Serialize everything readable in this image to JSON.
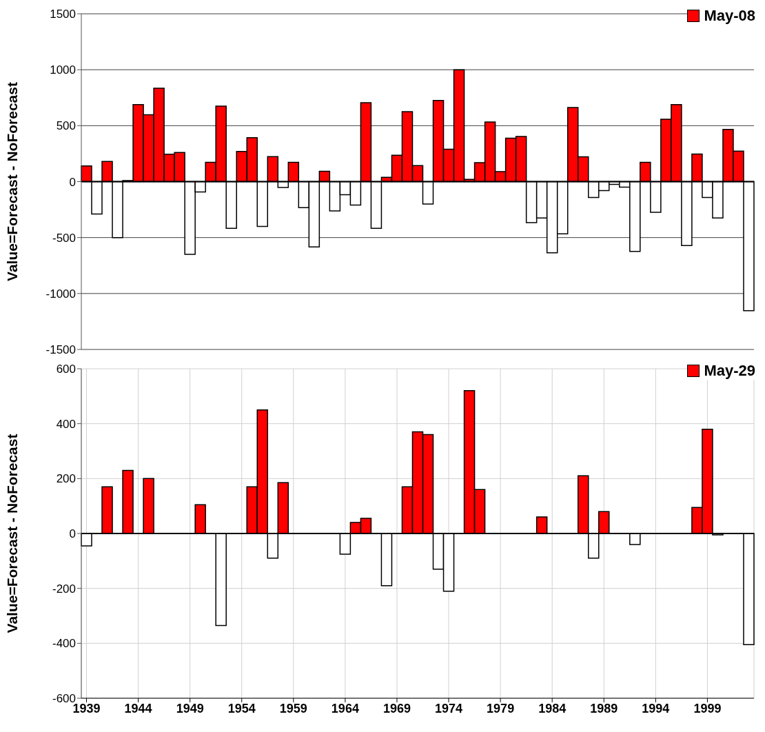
{
  "chart_data": [
    {
      "type": "bar",
      "ylabel": "Value=Forecast - NoForecast",
      "categories": [
        "1939",
        null,
        null,
        null,
        null,
        "1944",
        null,
        null,
        null,
        null,
        "1949",
        null,
        null,
        null,
        null,
        "1954",
        null,
        null,
        null,
        null,
        "1959",
        null,
        null,
        null,
        null,
        "1964",
        null,
        null,
        null,
        null,
        "1969",
        null,
        null,
        null,
        null,
        "1974",
        null,
        null,
        null,
        null,
        "1979",
        null,
        null,
        null,
        null,
        "1984",
        null,
        null,
        null,
        null,
        "1989",
        null,
        null,
        null,
        null,
        "1994",
        null,
        null,
        null,
        null,
        "1999",
        null,
        null,
        null,
        null
      ],
      "ylim": [
        -1500,
        1500
      ],
      "yticks": [
        -1500,
        -1000,
        -500,
        0,
        500,
        1000,
        1500
      ],
      "grid": "y",
      "legend": "top right",
      "tick_labels": "y",
      "series": [
        {
          "name": "May-08",
          "color": "#ff0000",
          "values": [
            140,
            -290,
            180,
            -500,
            10,
            689,
            597,
            835,
            245,
            260,
            -650,
            -92,
            172,
            675,
            -417,
            270,
            393,
            -400,
            223,
            -53,
            172,
            -233,
            -583,
            92,
            -262,
            -117,
            -209,
            705,
            -417,
            39,
            235,
            626,
            143,
            -200,
            726,
            290,
            1000,
            20,
            170,
            533,
            90,
            388,
            403,
            -366,
            -325,
            -636,
            -466,
            662,
            221,
            -141,
            -80,
            -25,
            -49,
            -624,
            172,
            -274,
            558,
            689,
            -571,
            247,
            -141,
            -325,
            466,
            272,
            -1153
          ],
          "colors": [
            "#ff0000",
            "#ffffff",
            "#ff0000",
            "#ffffff",
            "#ff0000",
            "#ff0000",
            "#ff0000",
            "#ff0000",
            "#ff0000",
            "#ff0000",
            "#ffffff",
            "#ffffff",
            "#ff0000",
            "#ff0000",
            "#ffffff",
            "#ff0000",
            "#ff0000",
            "#ffffff",
            "#ff0000",
            "#ffffff",
            "#ff0000",
            "#ffffff",
            "#ffffff",
            "#ff0000",
            "#ffffff",
            "#ffffff",
            "#ffffff",
            "#ff0000",
            "#ffffff",
            "#ff0000",
            "#ff0000",
            "#ff0000",
            "#ff0000",
            "#ffffff",
            "#ff0000",
            "#ff0000",
            "#ff0000",
            "#ff0000",
            "#ff0000",
            "#ff0000",
            "#ff0000",
            "#ff0000",
            "#ff0000",
            "#ffffff",
            "#ffffff",
            "#ffffff",
            "#ffffff",
            "#ff0000",
            "#ff0000",
            "#ffffff",
            "#ffffff",
            "#ffffff",
            "#ffffff",
            "#ffffff",
            "#ff0000",
            "#ffffff",
            "#ff0000",
            "#ff0000",
            "#ffffff",
            "#ff0000",
            "#ffffff",
            "#ffffff",
            "#ff0000",
            "#ff0000",
            "#ffffff"
          ]
        }
      ]
    },
    {
      "type": "bar",
      "ylabel": "Value=Forecast - NoForecast",
      "categories": [
        "1939",
        null,
        null,
        null,
        null,
        "1944",
        null,
        null,
        null,
        null,
        "1949",
        null,
        null,
        null,
        null,
        "1954",
        null,
        null,
        null,
        null,
        "1959",
        null,
        null,
        null,
        null,
        "1964",
        null,
        null,
        null,
        null,
        "1969",
        null,
        null,
        null,
        null,
        "1974",
        null,
        null,
        null,
        null,
        "1979",
        null,
        null,
        null,
        null,
        "1984",
        null,
        null,
        null,
        null,
        "1989",
        null,
        null,
        null,
        null,
        "1994",
        null,
        null,
        null,
        null,
        "1999",
        null,
        null,
        null,
        null
      ],
      "ylim": [
        -600,
        600
      ],
      "yticks": [
        -600,
        -400,
        -200,
        0,
        200,
        400,
        600
      ],
      "grid": true,
      "legend": "top right",
      "series": [
        {
          "name": "May-29",
          "color": "#ff0000",
          "values": [
            -45,
            null,
            170,
            null,
            230,
            null,
            200,
            null,
            null,
            null,
            null,
            105,
            null,
            -335,
            null,
            null,
            170,
            450,
            -90,
            185,
            null,
            null,
            null,
            null,
            null,
            -75,
            40,
            55,
            null,
            -190,
            null,
            170,
            370,
            360,
            -130,
            -210,
            null,
            520,
            160,
            null,
            null,
            null,
            null,
            null,
            60,
            null,
            null,
            null,
            210,
            -90,
            80,
            null,
            null,
            -40,
            null,
            null,
            null,
            null,
            null,
            95,
            380,
            -5,
            null,
            null,
            -405
          ],
          "colors": [
            "#ffffff",
            null,
            "#ff0000",
            null,
            "#ff0000",
            null,
            "#ff0000",
            null,
            null,
            null,
            null,
            "#ff0000",
            null,
            "#ffffff",
            null,
            null,
            "#ff0000",
            "#ff0000",
            "#ffffff",
            "#ff0000",
            null,
            null,
            null,
            null,
            null,
            "#ffffff",
            "#ff0000",
            "#ff0000",
            null,
            "#ffffff",
            null,
            "#ff0000",
            "#ff0000",
            "#ff0000",
            "#ffffff",
            "#ffffff",
            null,
            "#ff0000",
            "#ff0000",
            null,
            null,
            null,
            null,
            null,
            "#ff0000",
            null,
            null,
            null,
            "#ff0000",
            "#ffffff",
            "#ff0000",
            null,
            null,
            "#ffffff",
            null,
            null,
            null,
            null,
            null,
            "#ff0000",
            "#ff0000",
            "#ffffff",
            null,
            null,
            "#ffffff"
          ]
        }
      ]
    }
  ]
}
